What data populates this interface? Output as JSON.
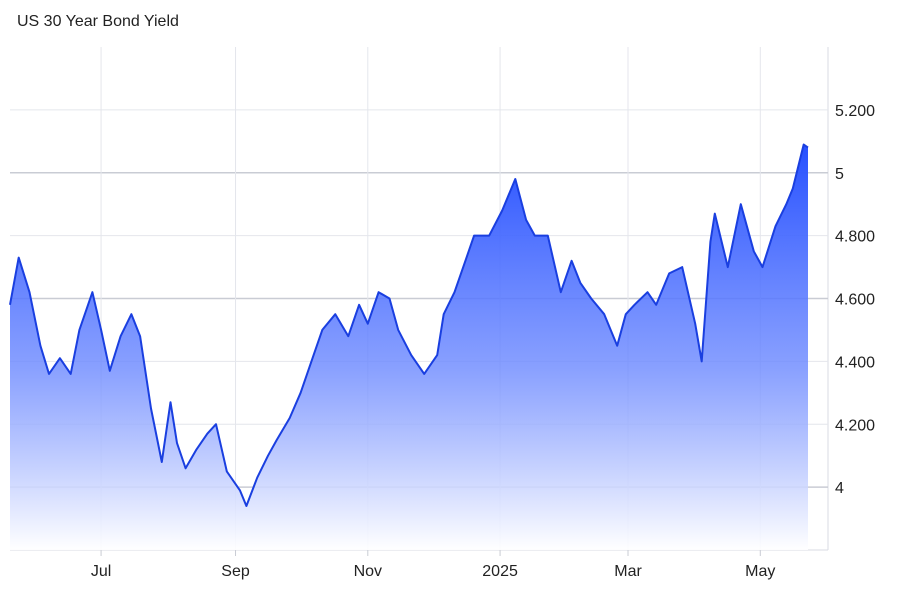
{
  "chart_data": {
    "type": "area",
    "title": "US 30 Year Bond Yield",
    "xlabel": "",
    "ylabel": "",
    "x_ticks": [
      "Jul",
      "Sep",
      "Nov",
      "2025",
      "Mar",
      "May"
    ],
    "y_ticks": [
      {
        "value": 5.2,
        "label": "5.200"
      },
      {
        "value": 5.0,
        "label": "5"
      },
      {
        "value": 4.8,
        "label": "4.800"
      },
      {
        "value": 4.6,
        "label": "4.600"
      },
      {
        "value": 4.4,
        "label": "4.400"
      },
      {
        "value": 4.2,
        "label": "4.200"
      },
      {
        "value": 4.0,
        "label": "4"
      }
    ],
    "ylim": [
      3.8,
      5.4
    ],
    "grid": true,
    "line_color": "#1a3fe0",
    "fill_color": "#2b55ff",
    "series": [
      {
        "x": [
          "2024-05-20",
          "2024-05-24",
          "2024-05-29",
          "2024-06-03",
          "2024-06-07",
          "2024-06-12",
          "2024-06-17",
          "2024-06-21",
          "2024-06-27",
          "2024-07-01",
          "2024-07-05",
          "2024-07-10",
          "2024-07-15",
          "2024-07-19",
          "2024-07-24",
          "2024-07-29",
          "2024-08-02",
          "2024-08-05",
          "2024-08-09",
          "2024-08-14",
          "2024-08-19",
          "2024-08-23",
          "2024-08-28",
          "2024-09-03",
          "2024-09-06",
          "2024-09-11",
          "2024-09-16",
          "2024-09-20",
          "2024-09-26",
          "2024-10-01",
          "2024-10-07",
          "2024-10-11",
          "2024-10-17",
          "2024-10-23",
          "2024-10-28",
          "2024-11-01",
          "2024-11-06",
          "2024-11-11",
          "2024-11-15",
          "2024-11-21",
          "2024-11-27",
          "2024-12-03",
          "2024-12-06",
          "2024-12-11",
          "2024-12-16",
          "2024-12-20",
          "2024-12-27",
          "2025-01-02",
          "2025-01-08",
          "2025-01-13",
          "2025-01-17",
          "2025-01-23",
          "2025-01-29",
          "2025-02-03",
          "2025-02-07",
          "2025-02-12",
          "2025-02-18",
          "2025-02-24",
          "2025-02-28",
          "2025-03-04",
          "2025-03-10",
          "2025-03-14",
          "2025-03-20",
          "2025-03-26",
          "2025-04-01",
          "2025-04-04",
          "2025-04-08",
          "2025-04-10",
          "2025-04-16",
          "2025-04-22",
          "2025-04-28",
          "2025-05-02",
          "2025-05-08",
          "2025-05-13",
          "2025-05-16",
          "2025-05-21",
          "2025-05-23"
        ],
        "values": [
          4.58,
          4.73,
          4.62,
          4.45,
          4.36,
          4.41,
          4.36,
          4.5,
          4.62,
          4.5,
          4.37,
          4.48,
          4.55,
          4.48,
          4.25,
          4.08,
          4.27,
          4.14,
          4.06,
          4.12,
          4.17,
          4.2,
          4.05,
          3.99,
          3.94,
          4.03,
          4.1,
          4.15,
          4.22,
          4.3,
          4.42,
          4.5,
          4.55,
          4.48,
          4.58,
          4.52,
          4.62,
          4.6,
          4.5,
          4.42,
          4.36,
          4.42,
          4.55,
          4.62,
          4.72,
          4.8,
          4.8,
          4.88,
          4.98,
          4.85,
          4.8,
          4.8,
          4.62,
          4.72,
          4.65,
          4.6,
          4.55,
          4.45,
          4.55,
          4.58,
          4.62,
          4.58,
          4.68,
          4.7,
          4.52,
          4.4,
          4.78,
          4.87,
          4.7,
          4.9,
          4.75,
          4.7,
          4.83,
          4.9,
          4.95,
          5.09,
          5.08
        ]
      }
    ]
  }
}
